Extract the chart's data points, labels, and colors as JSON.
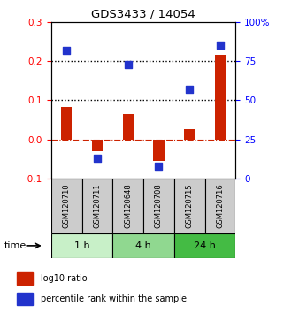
{
  "title": "GDS3433 / 14054",
  "samples": [
    "GSM120710",
    "GSM120711",
    "GSM120648",
    "GSM120708",
    "GSM120715",
    "GSM120716"
  ],
  "log10_ratio": [
    0.083,
    -0.03,
    0.065,
    -0.055,
    0.025,
    0.215
  ],
  "percentile_rank": [
    82,
    13,
    73,
    8,
    57,
    85
  ],
  "groups": [
    {
      "label": "1 h",
      "indices": [
        0,
        1
      ],
      "color": "#c8f0c8"
    },
    {
      "label": "4 h",
      "indices": [
        2,
        3
      ],
      "color": "#90d890"
    },
    {
      "label": "24 h",
      "indices": [
        4,
        5
      ],
      "color": "#44bb44"
    }
  ],
  "ylim_left": [
    -0.1,
    0.3
  ],
  "ylim_right": [
    0,
    100
  ],
  "yticks_left": [
    -0.1,
    0.0,
    0.1,
    0.2,
    0.3
  ],
  "yticks_right": [
    0,
    25,
    50,
    75,
    100
  ],
  "ytick_labels_right": [
    "0",
    "25",
    "50",
    "75",
    "100%"
  ],
  "bar_color": "#cc2200",
  "dot_color": "#2233cc",
  "hline_dotted_vals": [
    0.2,
    0.1
  ],
  "hline_zero_color": "#cc2200",
  "bar_width": 0.35,
  "dot_size": 40,
  "time_label": "time",
  "legend_bar_label": "log10 ratio",
  "legend_dot_label": "percentile rank within the sample",
  "bg_color": "#ffffff",
  "sample_box_color": "#cccccc",
  "figsize": [
    3.21,
    3.54
  ],
  "dpi": 100
}
